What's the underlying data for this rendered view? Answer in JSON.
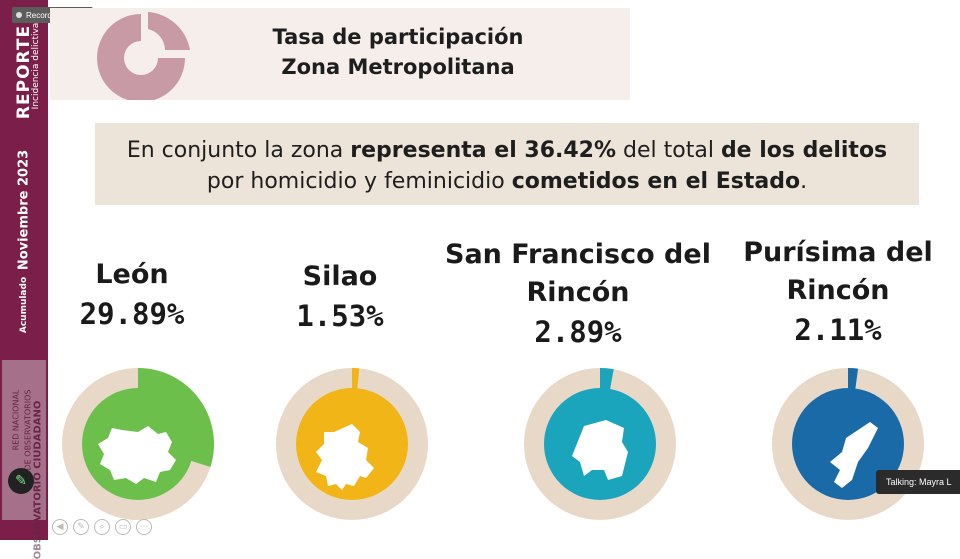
{
  "recording": {
    "label": "Recording..."
  },
  "sidebar": {
    "reporte": "REPORTE",
    "subtitle": "Incidencia delictiva",
    "period": "Noviembre 2023",
    "accumulated": "Acumulado",
    "logo_line1": "RED NACIONAL",
    "logo_line2": "DE OBSERVATORIOS",
    "logo_line3": "OBSERVATORIO CIUDADANO"
  },
  "header": {
    "title_line1": "Tasa de participación",
    "title_line2": "Zona Metropolitana"
  },
  "summary": {
    "t1": "En conjunto la zona ",
    "b1": "representa el 36.42%",
    "t2": " del total ",
    "b2": "de los delitos",
    "t3": " por homicidio y feminicidio ",
    "b3": "cometidos en el Estado",
    "t4": "."
  },
  "cities": [
    {
      "name": "León",
      "percent": "29.89%",
      "value": 29.89,
      "color": "#6dbf4b"
    },
    {
      "name": "Silao",
      "percent": "1.53%",
      "value": 1.53,
      "color": "#f2b517"
    },
    {
      "name": "San Francisco del Rincón",
      "name_line1": "San Francisco del",
      "name_line2": "Rincón",
      "percent": "2.89%",
      "value": 2.89,
      "color": "#1aa5bd"
    },
    {
      "name": "Purísima del Rincón",
      "name_line1": "Purísima del",
      "name_line2": "Rincón",
      "percent": "2.11%",
      "value": 2.11,
      "color": "#1a6aa8"
    }
  ],
  "colors": {
    "ring_bg": "#e8d8c8",
    "sidebar": "#7b1f4a",
    "header_bg": "#f6eeea",
    "summary_bg": "#ece3d9",
    "header_donut": "#c79aa6"
  },
  "talking": {
    "label": "Talking: Mayra L"
  }
}
